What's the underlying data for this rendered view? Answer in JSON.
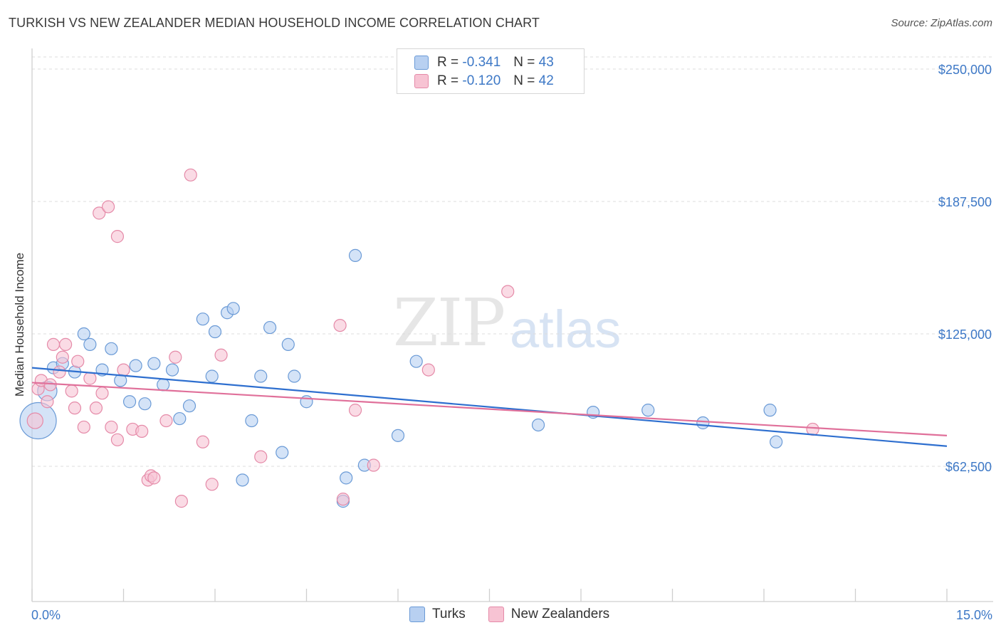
{
  "title": "TURKISH VS NEW ZEALANDER MEDIAN HOUSEHOLD INCOME CORRELATION CHART",
  "source": "Source: ZipAtlas.com",
  "watermark": {
    "zip": "ZIP",
    "atlas": "atlas"
  },
  "legend": {
    "rows": [
      {
        "r_label": "R =",
        "r_value": "-0.341",
        "n_label": "N =",
        "n_value": "43"
      },
      {
        "r_label": "R =",
        "r_value": "-0.120",
        "n_label": "N =",
        "n_value": "42"
      }
    ]
  },
  "bottom_legend": {
    "turks": "Turks",
    "nz": "New Zealanders"
  },
  "colors": {
    "turks_fill": "#b8d0f1",
    "turks_stroke": "#6a9ad6",
    "turks_line": "#2e6fcf",
    "nz_fill": "#f7c3d3",
    "nz_stroke": "#e58aa8",
    "nz_line": "#e0709a",
    "tick_text": "#3d78c6"
  },
  "chart_data": {
    "type": "scatter",
    "title": "TURKISH VS NEW ZEALANDER MEDIAN HOUSEHOLD INCOME CORRELATION CHART",
    "xlabel": "",
    "ylabel": "Median Household Income",
    "xlim": [
      0,
      15
    ],
    "ylim": [
      0,
      260000
    ],
    "x_tick_labels": [
      "0.0%",
      "15.0%"
    ],
    "y_ticks": [
      {
        "value": 62500,
        "label": "$62,500"
      },
      {
        "value": 125000,
        "label": "$125,000"
      },
      {
        "value": 187500,
        "label": "$187,500"
      },
      {
        "value": 250000,
        "label": "$250,000"
      }
    ],
    "series": [
      {
        "name": "Turks",
        "r": -0.341,
        "n": 43,
        "trend": [
          [
            0,
            109000
          ],
          [
            15,
            72000
          ]
        ],
        "points": [
          [
            0.1,
            84000,
            3
          ],
          [
            0.25,
            98000,
            1.6
          ],
          [
            0.35,
            109000,
            1
          ],
          [
            0.5,
            111000,
            1
          ],
          [
            0.7,
            107000,
            1
          ],
          [
            0.85,
            125000,
            1
          ],
          [
            0.95,
            120000,
            1
          ],
          [
            1.15,
            108000,
            1
          ],
          [
            1.3,
            118000,
            1
          ],
          [
            1.45,
            103000,
            1
          ],
          [
            1.6,
            93000,
            1
          ],
          [
            1.7,
            110000,
            1
          ],
          [
            1.85,
            92000,
            1
          ],
          [
            2.0,
            111000,
            1
          ],
          [
            2.15,
            101000,
            1
          ],
          [
            2.3,
            108000,
            1
          ],
          [
            2.42,
            85000,
            1
          ],
          [
            2.58,
            91000,
            1
          ],
          [
            2.8,
            132000,
            1
          ],
          [
            2.95,
            105000,
            1
          ],
          [
            3.0,
            126000,
            1
          ],
          [
            3.2,
            135000,
            1
          ],
          [
            3.3,
            137000,
            1
          ],
          [
            3.45,
            56000,
            1
          ],
          [
            3.6,
            84000,
            1
          ],
          [
            3.75,
            105000,
            1
          ],
          [
            3.9,
            128000,
            1
          ],
          [
            4.1,
            69000,
            1
          ],
          [
            4.2,
            120000,
            1
          ],
          [
            4.3,
            105000,
            1
          ],
          [
            4.5,
            93000,
            1
          ],
          [
            5.1,
            46000,
            1
          ],
          [
            5.15,
            57000,
            1
          ],
          [
            5.3,
            162000,
            1
          ],
          [
            5.45,
            63000,
            1
          ],
          [
            6.0,
            77000,
            1
          ],
          [
            6.3,
            112000,
            1
          ],
          [
            8.3,
            82000,
            1
          ],
          [
            9.2,
            88000,
            1
          ],
          [
            10.1,
            89000,
            1
          ],
          [
            11.0,
            83000,
            1
          ],
          [
            12.1,
            89000,
            1
          ],
          [
            12.2,
            74000,
            1
          ]
        ]
      },
      {
        "name": "New Zealanders",
        "r": -0.12,
        "n": 42,
        "trend": [
          [
            0,
            102000
          ],
          [
            15,
            77000
          ]
        ],
        "points": [
          [
            0.05,
            84000,
            1.3
          ],
          [
            0.1,
            99000,
            1
          ],
          [
            0.15,
            103000,
            1
          ],
          [
            0.25,
            93000,
            1
          ],
          [
            0.3,
            101000,
            1
          ],
          [
            0.35,
            120000,
            1
          ],
          [
            0.45,
            107000,
            1
          ],
          [
            0.5,
            114000,
            1
          ],
          [
            0.55,
            120000,
            1
          ],
          [
            0.65,
            98000,
            1
          ],
          [
            0.7,
            90000,
            1
          ],
          [
            0.75,
            112000,
            1
          ],
          [
            0.85,
            81000,
            1
          ],
          [
            0.95,
            104000,
            1
          ],
          [
            1.05,
            90000,
            1
          ],
          [
            1.1,
            182000,
            1
          ],
          [
            1.25,
            185000,
            1
          ],
          [
            1.15,
            97000,
            1
          ],
          [
            1.3,
            81000,
            1
          ],
          [
            1.4,
            75000,
            1
          ],
          [
            1.4,
            171000,
            1
          ],
          [
            1.5,
            108000,
            1
          ],
          [
            1.65,
            80000,
            1
          ],
          [
            1.8,
            79000,
            1
          ],
          [
            1.9,
            56000,
            1
          ],
          [
            1.95,
            58000,
            1
          ],
          [
            2.0,
            57000,
            1
          ],
          [
            2.2,
            84000,
            1
          ],
          [
            2.35,
            114000,
            1
          ],
          [
            2.45,
            46000,
            1
          ],
          [
            2.6,
            200000,
            1
          ],
          [
            2.8,
            74000,
            1
          ],
          [
            2.95,
            54000,
            1
          ],
          [
            3.1,
            115000,
            1
          ],
          [
            3.75,
            67000,
            1
          ],
          [
            5.05,
            129000,
            1
          ],
          [
            5.1,
            47000,
            1
          ],
          [
            5.3,
            89000,
            1
          ],
          [
            5.6,
            63000,
            1
          ],
          [
            6.5,
            108000,
            1
          ],
          [
            7.8,
            145000,
            1
          ],
          [
            12.8,
            80000,
            1
          ]
        ]
      }
    ]
  }
}
